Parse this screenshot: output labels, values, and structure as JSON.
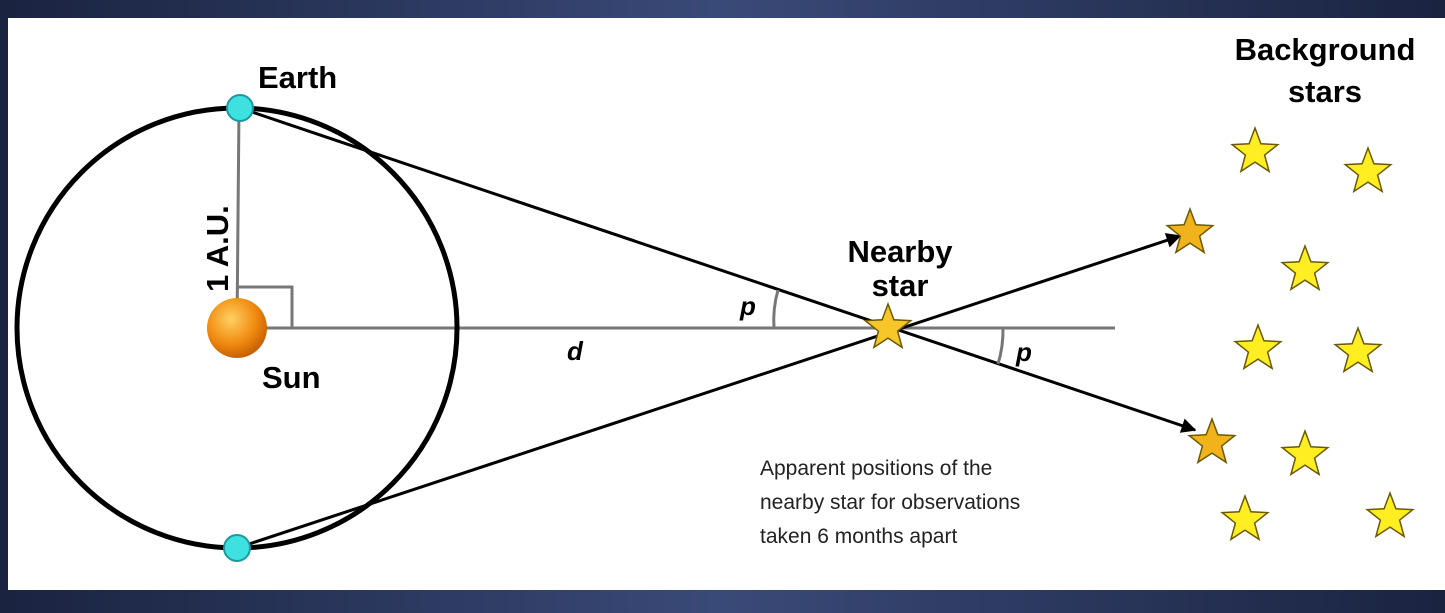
{
  "labels": {
    "earth": "Earth",
    "sun": "Sun",
    "radius": "1 A.U.",
    "distance": "d",
    "parallax_near": "p",
    "parallax_far": "p",
    "nearby_star": [
      "Nearby",
      "star"
    ],
    "background_stars": [
      "Background",
      "stars"
    ],
    "caption": [
      "Apparent positions of the",
      "nearby star for observations",
      "taken 6 months apart"
    ]
  }
}
